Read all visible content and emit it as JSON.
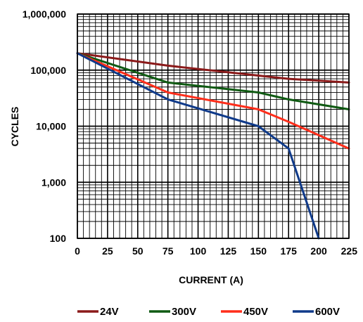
{
  "chart_data": {
    "type": "line",
    "title": "",
    "xlabel": "CURRENT (A)",
    "ylabel": "CYCLES",
    "x_scale": "linear",
    "y_scale": "log",
    "xlim": [
      0,
      225
    ],
    "ylim": [
      100,
      1000000
    ],
    "grid": true,
    "legend_position": "bottom",
    "x_ticks": [
      0,
      25,
      50,
      75,
      100,
      125,
      150,
      175,
      200,
      225
    ],
    "x_tick_labels": [
      "0",
      "25",
      "50",
      "75",
      "100",
      "125",
      "150",
      "175",
      "200",
      "225"
    ],
    "y_ticks": [
      100,
      1000,
      10000,
      100000,
      1000000
    ],
    "y_tick_labels": [
      "100",
      "1,000",
      "10,000",
      "100,000",
      "1,000,000"
    ],
    "series": [
      {
        "name": "24V",
        "color": "#8b1a1a",
        "points": [
          [
            0,
            200000
          ],
          [
            75,
            120000
          ],
          [
            150,
            80000
          ],
          [
            175,
            70000
          ],
          [
            225,
            60000
          ]
        ]
      },
      {
        "name": "300V",
        "color": "#0f5a12",
        "points": [
          [
            0,
            200000
          ],
          [
            75,
            60000
          ],
          [
            150,
            40000
          ],
          [
            175,
            30000
          ],
          [
            225,
            20000
          ]
        ]
      },
      {
        "name": "450V",
        "color": "#ff2d1a",
        "points": [
          [
            0,
            200000
          ],
          [
            75,
            40000
          ],
          [
            150,
            20000
          ],
          [
            175,
            12000
          ],
          [
            225,
            4000
          ]
        ]
      },
      {
        "name": "600V",
        "color": "#0f3a8a",
        "points": [
          [
            0,
            200000
          ],
          [
            75,
            30000
          ],
          [
            150,
            10000
          ],
          [
            175,
            4000
          ],
          [
            200,
            100
          ]
        ]
      }
    ]
  }
}
